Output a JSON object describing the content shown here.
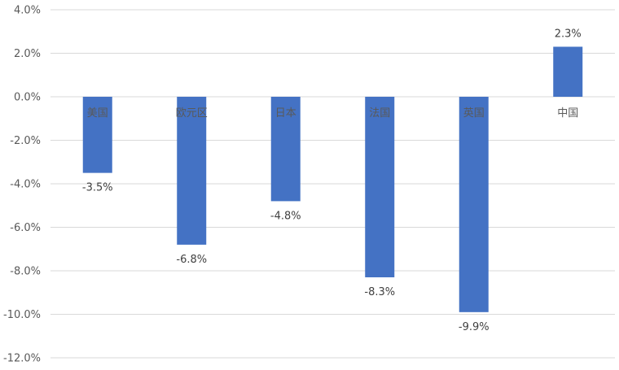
{
  "chart_data": {
    "type": "bar",
    "categories": [
      "美国",
      "欧元区",
      "日本",
      "法国",
      "英国",
      "中国"
    ],
    "values": [
      -3.5,
      -6.8,
      -4.8,
      -8.3,
      -9.9,
      2.3
    ],
    "data_labels": [
      "-3.5%",
      "-6.8%",
      "-4.8%",
      "-8.3%",
      "-9.9%",
      "2.3%"
    ],
    "ylim": [
      -12,
      4
    ],
    "y_ticks": [
      4,
      2,
      0,
      -2,
      -4,
      -6,
      -8,
      -10,
      -12
    ],
    "y_tick_labels": [
      "4.0%",
      "2.0%",
      "0.0%",
      "-2.0%",
      "-4.0%",
      "-6.0%",
      "-8.0%",
      "-10.0%",
      "-12.0%"
    ],
    "grid": true,
    "legend": "none",
    "bar_color": "#4472c4",
    "grid_color": "#d9d9d9"
  }
}
